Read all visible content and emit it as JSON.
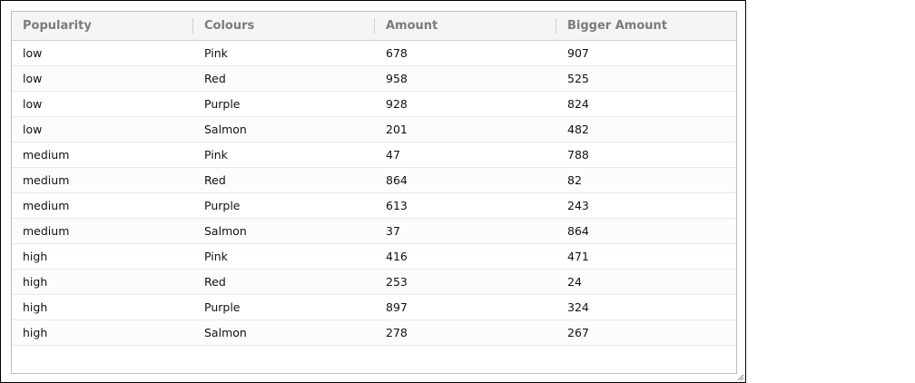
{
  "table": {
    "columns": [
      "Popularity",
      "Colours",
      "Amount",
      "Bigger Amount"
    ],
    "rows": [
      [
        "low",
        "Pink",
        "678",
        "907"
      ],
      [
        "low",
        "Red",
        "958",
        "525"
      ],
      [
        "low",
        "Purple",
        "928",
        "824"
      ],
      [
        "low",
        "Salmon",
        "201",
        "482"
      ],
      [
        "medium",
        "Pink",
        "47",
        "788"
      ],
      [
        "medium",
        "Red",
        "864",
        "82"
      ],
      [
        "medium",
        "Purple",
        "613",
        "243"
      ],
      [
        "medium",
        "Salmon",
        "37",
        "864"
      ],
      [
        "high",
        "Pink",
        "416",
        "471"
      ],
      [
        "high",
        "Red",
        "253",
        "24"
      ],
      [
        "high",
        "Purple",
        "897",
        "324"
      ],
      [
        "high",
        "Salmon",
        "278",
        "267"
      ]
    ]
  },
  "colors": {
    "header_background": "#f4f5f5",
    "header_text": "#7b7b7b",
    "row_alt_background": "#fbfcfe",
    "row_divider": "#e6e9ee",
    "grid_border": "#bdbdbd"
  },
  "icons": {
    "resize_handle": "resize-grip-icon"
  }
}
